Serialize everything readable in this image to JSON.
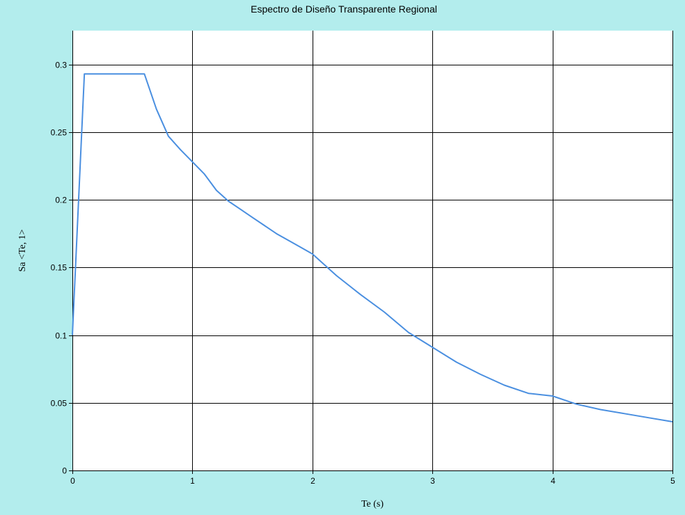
{
  "chart_data": {
    "type": "line",
    "title": "Espectro de Diseño Transparente Regional",
    "xlabel": "Te (s)",
    "ylabel": "Sa <Te, 1>",
    "xlim": [
      0,
      5
    ],
    "ylim": [
      0,
      0.325
    ],
    "grid": true,
    "x_ticks": [
      0,
      1,
      2,
      3,
      4,
      5
    ],
    "x_tick_labels": [
      "0",
      "1",
      "2",
      "3",
      "4",
      "5"
    ],
    "y_ticks": [
      0,
      0.05,
      0.1,
      0.15,
      0.2,
      0.25,
      0.3
    ],
    "y_tick_labels": [
      "0",
      "0.05",
      "0.1",
      "0.15",
      "0.2",
      "0.25",
      "0.3"
    ],
    "colors": {
      "background": "#b3eded",
      "plot_background": "#ffffff",
      "grid": "#000000",
      "line": "#4a8fe0"
    },
    "series": [
      {
        "color": "#4a8fe0",
        "x": [
          0,
          0.1,
          0.6,
          0.7,
          0.8,
          0.9,
          1.0,
          1.1,
          1.2,
          1.3,
          1.4,
          1.5,
          1.6,
          1.7,
          1.8,
          1.9,
          2.0,
          2.2,
          2.4,
          2.6,
          2.8,
          3.0,
          3.2,
          3.4,
          3.6,
          3.8,
          4.0,
          4.2,
          4.4,
          4.6,
          4.8,
          5.0
        ],
        "y": [
          0.1,
          0.293,
          0.293,
          0.267,
          0.247,
          0.237,
          0.228,
          0.219,
          0.207,
          0.199,
          0.193,
          0.187,
          0.181,
          0.175,
          0.17,
          0.165,
          0.16,
          0.144,
          0.13,
          0.117,
          0.102,
          0.091,
          0.08,
          0.071,
          0.063,
          0.057,
          0.055,
          0.049,
          0.045,
          0.042,
          0.039,
          0.036
        ]
      }
    ]
  }
}
